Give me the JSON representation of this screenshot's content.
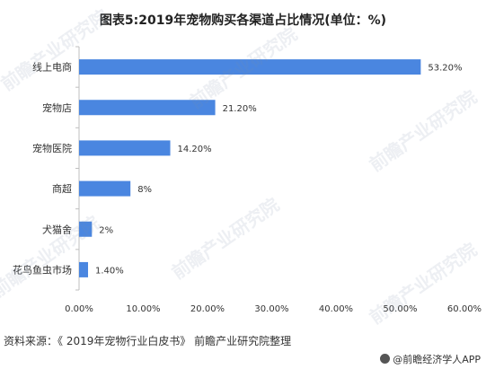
{
  "title": "图表5:2019年宠物购买各渠道占比情况(单位：%)",
  "source": "资料来源：《 2019年宠物行业白皮书》 前瞻产业研究院整理",
  "credit": "@前瞻经济学人APP",
  "watermark": "前瞻产业研究院",
  "colors": {
    "bar": "#4a86e0",
    "axis": "#bfbfbf",
    "text": "#333333"
  },
  "chart_data": {
    "type": "bar",
    "orientation": "horizontal",
    "categories": [
      "线上电商",
      "宠物店",
      "宠物医院",
      "商超",
      "犬猫舍",
      "花鸟鱼虫市场"
    ],
    "values": [
      53.2,
      21.2,
      14.2,
      8,
      2,
      1.4
    ],
    "data_labels": [
      "53.20%",
      "21.20%",
      "14.20%",
      "8%",
      "2%",
      "1.40%"
    ],
    "x_ticks": [
      "0.00%",
      "10.00%",
      "20.00%",
      "30.00%",
      "40.00%",
      "50.00%",
      "60.00%"
    ],
    "xlim": [
      0,
      60
    ],
    "grid": false,
    "legend": "none"
  }
}
